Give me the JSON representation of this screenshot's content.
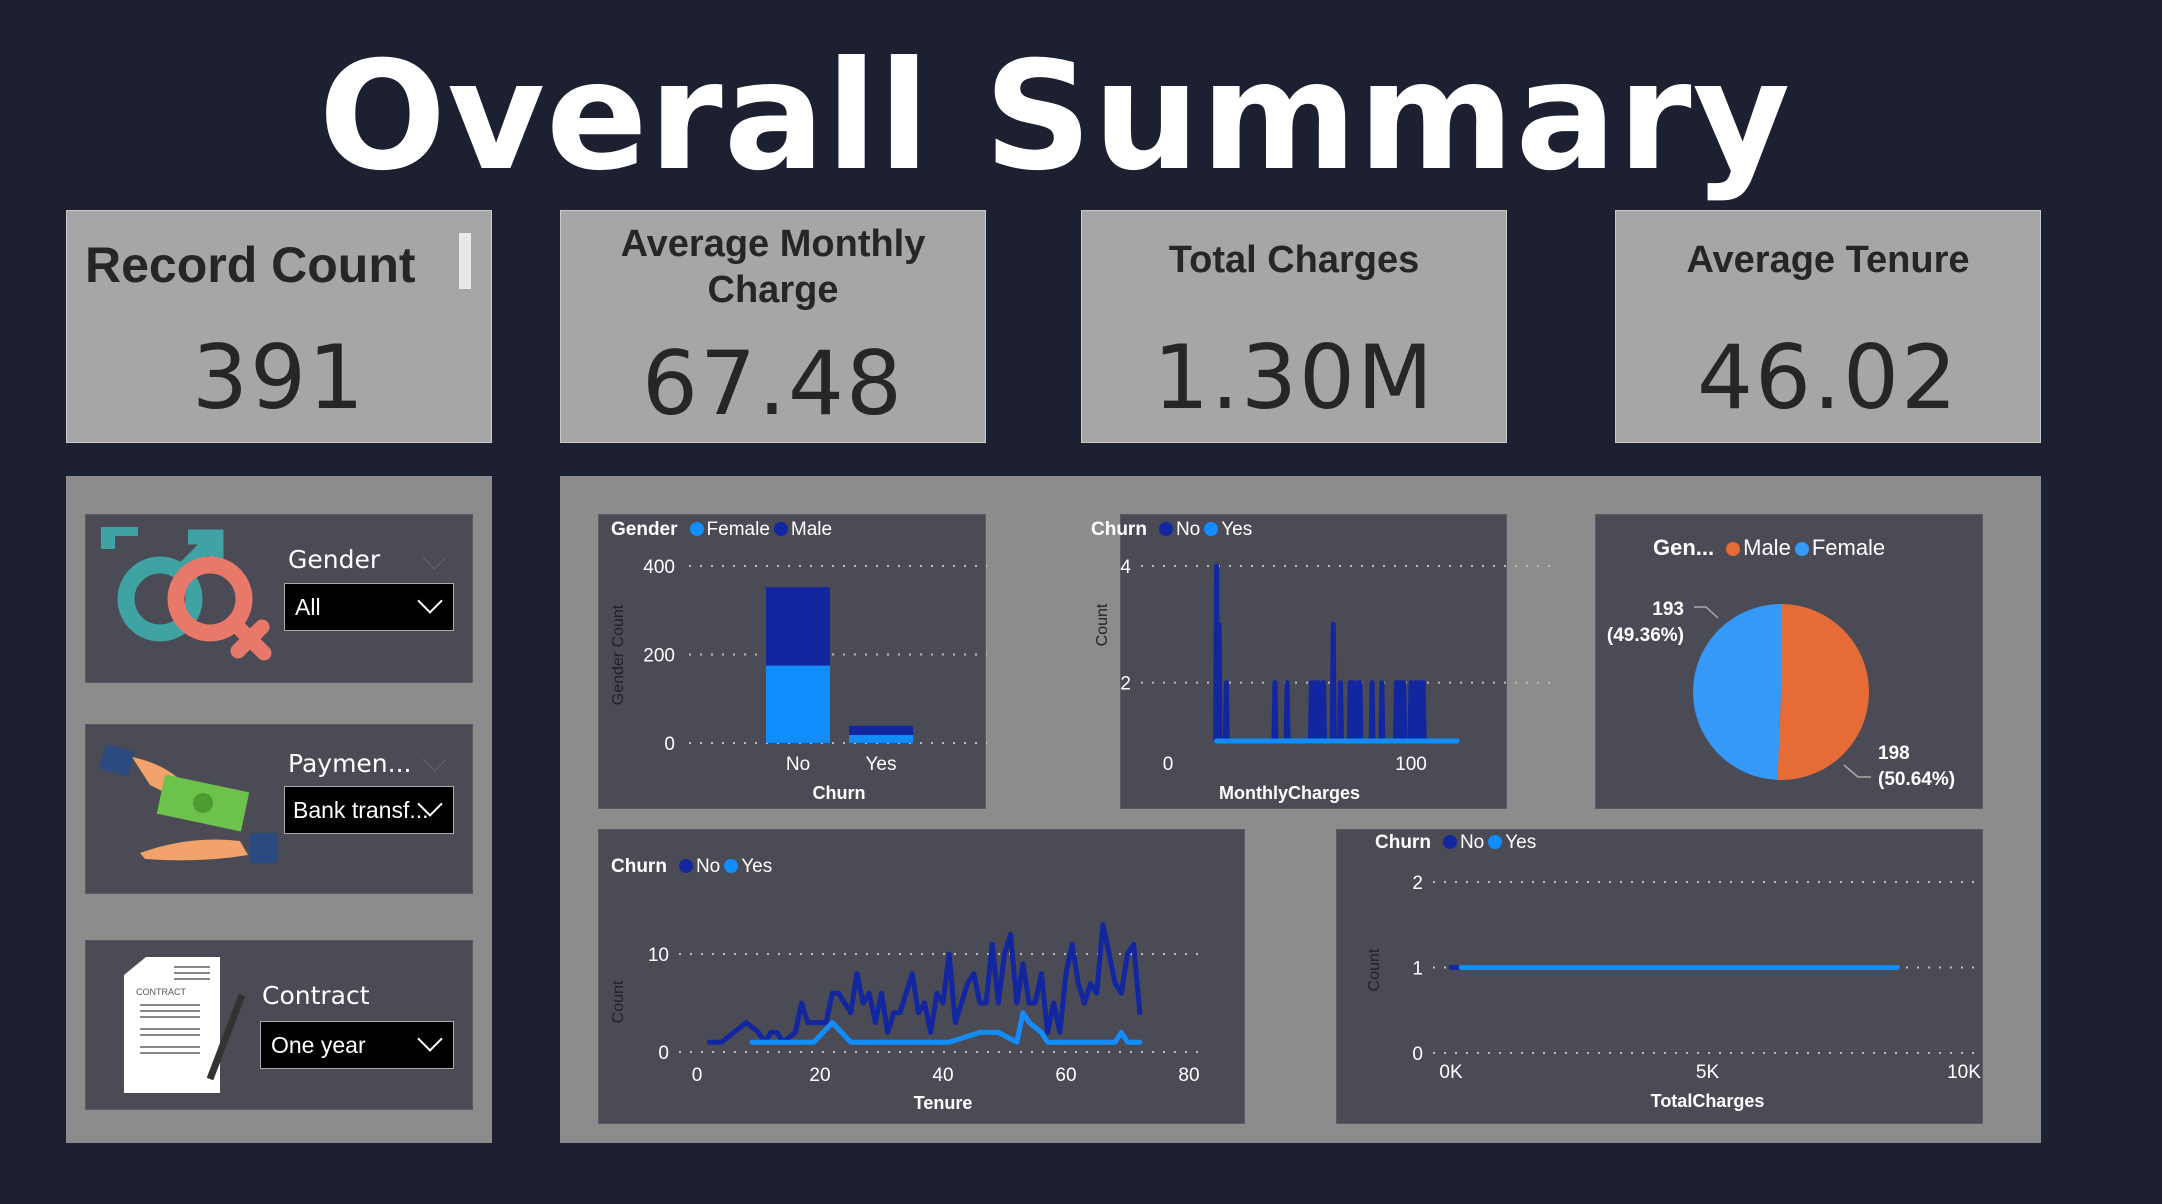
{
  "title": "Overall Summary",
  "kpis": [
    {
      "label": "Record Count",
      "value": "391"
    },
    {
      "label": "Average Monthly Charge",
      "value": "67.48"
    },
    {
      "label": "Total Charges",
      "value": "1.30M"
    },
    {
      "label": "Average Tenure",
      "value": "46.02"
    }
  ],
  "slicers": [
    {
      "label": "Gender",
      "value": "All",
      "icon": "gender-symbols-icon"
    },
    {
      "label": "Paymen...",
      "value": "Bank transf...",
      "icon": "money-hands-icon"
    },
    {
      "label": "Contract",
      "value": "One year",
      "icon": "contract-document-icon",
      "icon_text": "CONTRACT"
    }
  ],
  "colors": {
    "no": "#1226a0",
    "yes": "#118dff",
    "male_pie": "#e66c37",
    "female_pie": "#3599f7",
    "background": "#1c2030",
    "card": "#4b4b55",
    "panel": "#8c8c8c",
    "kpi": "#a6a6a6"
  },
  "chart_data": [
    {
      "type": "bar",
      "stacked": true,
      "legend_title": "Gender",
      "categories": [
        "No",
        "Yes"
      ],
      "series": [
        {
          "name": "Female",
          "values": [
            175,
            18
          ],
          "color": "#118dff"
        },
        {
          "name": "Male",
          "values": [
            177,
            21
          ],
          "color": "#1226a0"
        }
      ],
      "xlabel": "Churn",
      "ylabel": "Gender Count",
      "yticks": [
        "0",
        "200",
        "400"
      ],
      "ylim": [
        0,
        400
      ],
      "grid": true,
      "legend": "top-left"
    },
    {
      "type": "line",
      "legend_title": "Churn",
      "xlabel": "MonthlyCharges",
      "ylabel": "Count",
      "xticks": [
        "0",
        "100"
      ],
      "yticks": [
        "2",
        "4"
      ],
      "xlim": [
        0,
        100
      ],
      "ylim": [
        1,
        4
      ],
      "baseline": 1,
      "series": [
        {
          "name": "No",
          "color": "#1226a0",
          "spike_x": [
            20,
            21,
            24,
            44,
            49,
            59,
            60,
            61,
            62,
            64,
            68,
            71,
            75,
            76,
            78,
            79,
            84,
            88,
            94,
            95,
            96,
            97,
            100,
            102,
            103,
            104,
            105
          ],
          "spike_y": [
            4,
            3,
            2,
            2,
            2,
            2,
            2,
            2,
            2,
            2,
            3,
            2,
            2,
            2,
            2,
            2,
            2,
            2,
            2,
            2,
            2,
            2,
            2,
            2,
            2,
            2,
            2
          ],
          "range": [
            19.5,
            105.5
          ]
        },
        {
          "name": "Yes",
          "color": "#118dff",
          "x": [
            20,
            119
          ],
          "y": [
            1,
            1
          ]
        }
      ],
      "grid": true,
      "legend": "top-left"
    },
    {
      "type": "pie",
      "legend_title": "Gen...",
      "slices": [
        {
          "name": "Male",
          "value": 198,
          "label": "198",
          "pct": "(50.64%)",
          "color": "#e66c37"
        },
        {
          "name": "Female",
          "value": 193,
          "label": "193",
          "pct": "(49.36%)",
          "color": "#3599f7"
        }
      ],
      "legend": "top-left"
    },
    {
      "type": "line",
      "legend_title": "Churn",
      "xlabel": "Tenure",
      "ylabel": "Count",
      "xticks": [
        "0",
        "20",
        "40",
        "60",
        "80"
      ],
      "yticks": [
        "0",
        "10"
      ],
      "xlim": [
        0,
        80
      ],
      "ylim": [
        0,
        10
      ],
      "series": [
        {
          "name": "No",
          "color": "#1226a0",
          "x": [
            2,
            4,
            8,
            10,
            11,
            12,
            13,
            14,
            16,
            17,
            18,
            21,
            22,
            23,
            25,
            26,
            27,
            28,
            29,
            30,
            31,
            32,
            33,
            35,
            36,
            37,
            38,
            39,
            40,
            41,
            42,
            43,
            44,
            45,
            46,
            47,
            48,
            49,
            50,
            51,
            52,
            53,
            54,
            55,
            56,
            57,
            58,
            59,
            60,
            61,
            62,
            63,
            64,
            65,
            66,
            67,
            68,
            69,
            70,
            71,
            72
          ],
          "y": [
            1,
            1,
            3,
            2,
            1,
            2,
            2,
            1,
            2,
            5,
            3,
            3,
            6,
            6,
            4,
            8,
            5,
            6,
            3,
            6,
            2,
            4,
            4,
            8,
            4,
            5,
            2,
            6,
            5,
            10,
            3,
            5,
            7,
            8,
            5,
            5,
            11,
            5,
            10,
            12,
            5,
            9,
            5,
            5,
            8,
            2,
            5,
            2,
            8,
            11,
            7,
            5,
            7,
            6,
            13,
            10,
            7,
            6,
            10,
            11,
            4
          ]
        },
        {
          "name": "Yes",
          "color": "#118dff",
          "x": [
            9,
            19,
            22,
            25,
            41,
            46,
            49,
            52,
            53,
            54,
            56,
            57,
            68,
            69,
            70,
            72
          ],
          "y": [
            1,
            1,
            3,
            1,
            1,
            2,
            2,
            1,
            4,
            3,
            2,
            1,
            1,
            2,
            1,
            1
          ]
        }
      ],
      "grid": true,
      "legend": "top-left"
    },
    {
      "type": "line",
      "legend_title": "Churn",
      "xlabel": "TotalCharges",
      "ylabel": "Count",
      "xticks": [
        "0K",
        "5K",
        "10K"
      ],
      "yticks": [
        "0",
        "1",
        "2"
      ],
      "xlim": [
        0,
        10000
      ],
      "ylim": [
        0,
        2
      ],
      "series": [
        {
          "name": "No",
          "color": "#1226a0",
          "x": [
            0,
            200
          ],
          "y": [
            1,
            1
          ]
        },
        {
          "name": "Yes",
          "color": "#118dff",
          "x": [
            200,
            8700
          ],
          "y": [
            1,
            1
          ]
        }
      ],
      "grid": true,
      "legend": "top-left"
    }
  ]
}
